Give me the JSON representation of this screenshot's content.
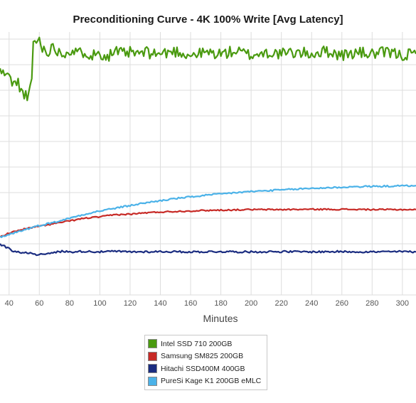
{
  "chart_data": {
    "type": "line",
    "title": "Preconditioning Curve - 4K 100% Write [Avg Latency]",
    "xlabel": "Minutes",
    "ylabel": "",
    "x_ticks": [
      40,
      60,
      80,
      100,
      120,
      140,
      160,
      180,
      200,
      220,
      240,
      260,
      280,
      300
    ],
    "xlim": [
      34,
      309
    ],
    "ylim": [
      0,
      9.5
    ],
    "grid": true,
    "legend_position": "bottom-center",
    "series": [
      {
        "name": "Intel SSD 710 200GB",
        "color": "#4a9a10",
        "points": [
          [
            34,
            8.35
          ],
          [
            36,
            8.2
          ],
          [
            38,
            8.25
          ],
          [
            40,
            8.05
          ],
          [
            42,
            7.95
          ],
          [
            44,
            7.8
          ],
          [
            46,
            7.9
          ],
          [
            48,
            7.55
          ],
          [
            50,
            7.5
          ],
          [
            52,
            7.25
          ],
          [
            53,
            7.35
          ],
          [
            55,
            8.0
          ],
          [
            56,
            9.5
          ],
          [
            58,
            9.3
          ],
          [
            60,
            9.55
          ],
          [
            62,
            9.15
          ],
          [
            65,
            9.05
          ],
          [
            70,
            9.2
          ],
          [
            75,
            8.95
          ],
          [
            80,
            9.1
          ],
          [
            85,
            8.95
          ],
          [
            90,
            9.05
          ],
          [
            95,
            8.9
          ],
          [
            100,
            9.0
          ],
          [
            105,
            8.85
          ],
          [
            110,
            9.05
          ],
          [
            115,
            8.95
          ],
          [
            120,
            9.0
          ],
          [
            125,
            8.95
          ],
          [
            130,
            9.0
          ],
          [
            140,
            8.95
          ],
          [
            150,
            9.05
          ],
          [
            160,
            8.9
          ],
          [
            170,
            9.0
          ],
          [
            180,
            8.95
          ],
          [
            190,
            9.05
          ],
          [
            200,
            8.9
          ],
          [
            210,
            9.0
          ],
          [
            220,
            8.95
          ],
          [
            230,
            9.0
          ],
          [
            240,
            8.95
          ],
          [
            250,
            9.05
          ],
          [
            260,
            8.9
          ],
          [
            270,
            9.0
          ],
          [
            280,
            8.95
          ],
          [
            290,
            9.0
          ],
          [
            300,
            8.9
          ],
          [
            309,
            8.95
          ]
        ]
      },
      {
        "name": "Samsung SM825 200GB",
        "color": "#c72a26",
        "points": [
          [
            34,
            2.15
          ],
          [
            40,
            2.3
          ],
          [
            50,
            2.45
          ],
          [
            60,
            2.55
          ],
          [
            70,
            2.65
          ],
          [
            80,
            2.75
          ],
          [
            90,
            2.85
          ],
          [
            100,
            2.9
          ],
          [
            110,
            2.98
          ],
          [
            120,
            3.0
          ],
          [
            130,
            3.05
          ],
          [
            140,
            3.08
          ],
          [
            150,
            3.1
          ],
          [
            160,
            3.12
          ],
          [
            170,
            3.14
          ],
          [
            180,
            3.15
          ],
          [
            200,
            3.17
          ],
          [
            220,
            3.17
          ],
          [
            240,
            3.18
          ],
          [
            260,
            3.18
          ],
          [
            280,
            3.17
          ],
          [
            300,
            3.17
          ],
          [
            309,
            3.17
          ]
        ]
      },
      {
        "name": "Hitachi SSD400M 400GB",
        "color": "#1a2c80",
        "points": [
          [
            34,
            1.88
          ],
          [
            38,
            1.78
          ],
          [
            42,
            1.65
          ],
          [
            46,
            1.6
          ],
          [
            50,
            1.55
          ],
          [
            54,
            1.58
          ],
          [
            58,
            1.48
          ],
          [
            62,
            1.55
          ],
          [
            66,
            1.52
          ],
          [
            70,
            1.58
          ],
          [
            75,
            1.62
          ],
          [
            80,
            1.6
          ],
          [
            90,
            1.62
          ],
          [
            100,
            1.6
          ],
          [
            110,
            1.62
          ],
          [
            120,
            1.6
          ],
          [
            140,
            1.61
          ],
          [
            160,
            1.6
          ],
          [
            180,
            1.61
          ],
          [
            200,
            1.6
          ],
          [
            220,
            1.61
          ],
          [
            240,
            1.6
          ],
          [
            260,
            1.61
          ],
          [
            280,
            1.6
          ],
          [
            300,
            1.61
          ],
          [
            309,
            1.6
          ]
        ]
      },
      {
        "name": "PureSi Kage K1 200GB eMLC",
        "color": "#4bb2e8",
        "points": [
          [
            34,
            2.15
          ],
          [
            40,
            2.25
          ],
          [
            50,
            2.42
          ],
          [
            60,
            2.58
          ],
          [
            70,
            2.7
          ],
          [
            80,
            2.85
          ],
          [
            90,
            3.0
          ],
          [
            100,
            3.12
          ],
          [
            110,
            3.22
          ],
          [
            120,
            3.32
          ],
          [
            130,
            3.42
          ],
          [
            140,
            3.5
          ],
          [
            150,
            3.58
          ],
          [
            160,
            3.64
          ],
          [
            170,
            3.7
          ],
          [
            180,
            3.75
          ],
          [
            190,
            3.8
          ],
          [
            200,
            3.84
          ],
          [
            210,
            3.87
          ],
          [
            220,
            3.9
          ],
          [
            230,
            3.93
          ],
          [
            240,
            3.96
          ],
          [
            250,
            3.98
          ],
          [
            260,
            4.0
          ],
          [
            270,
            4.02
          ],
          [
            280,
            4.03
          ],
          [
            290,
            4.04
          ],
          [
            300,
            4.05
          ],
          [
            309,
            4.06
          ]
        ]
      }
    ]
  }
}
